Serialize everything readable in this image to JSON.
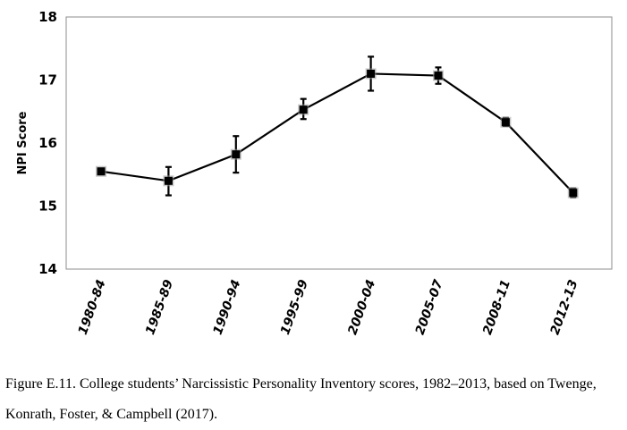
{
  "chart_data": {
    "type": "line",
    "ylabel": "NPI Score",
    "xlabel": "",
    "ylim": [
      14,
      18
    ],
    "yticks": [
      "14",
      "15",
      "16",
      "17",
      "18"
    ],
    "grid": false,
    "categories": [
      "1980-84",
      "1985-89",
      "1990-94",
      "1995-99",
      "2000-04",
      "2005-07",
      "2008-11",
      "2012-13"
    ],
    "series": [
      {
        "values": [
          15.55,
          15.4,
          15.82,
          16.53,
          17.1,
          17.07,
          16.33,
          15.21
        ],
        "error_low": [
          15.55,
          15.17,
          15.53,
          16.38,
          16.83,
          16.94,
          16.27,
          15.14
        ],
        "error_high": [
          15.55,
          15.62,
          16.11,
          16.7,
          17.37,
          17.2,
          16.4,
          15.28
        ]
      }
    ]
  },
  "caption": "Figure E.11. College students’ Narcissistic Personality Inventory scores, 1982–2013, based on Twenge, Konrath, Foster, & Campbell (2017).",
  "colors": {
    "line": "#000000",
    "marker": "#000000",
    "marker_halo": "#9a9a9a",
    "frame": "#8c8c8c"
  }
}
